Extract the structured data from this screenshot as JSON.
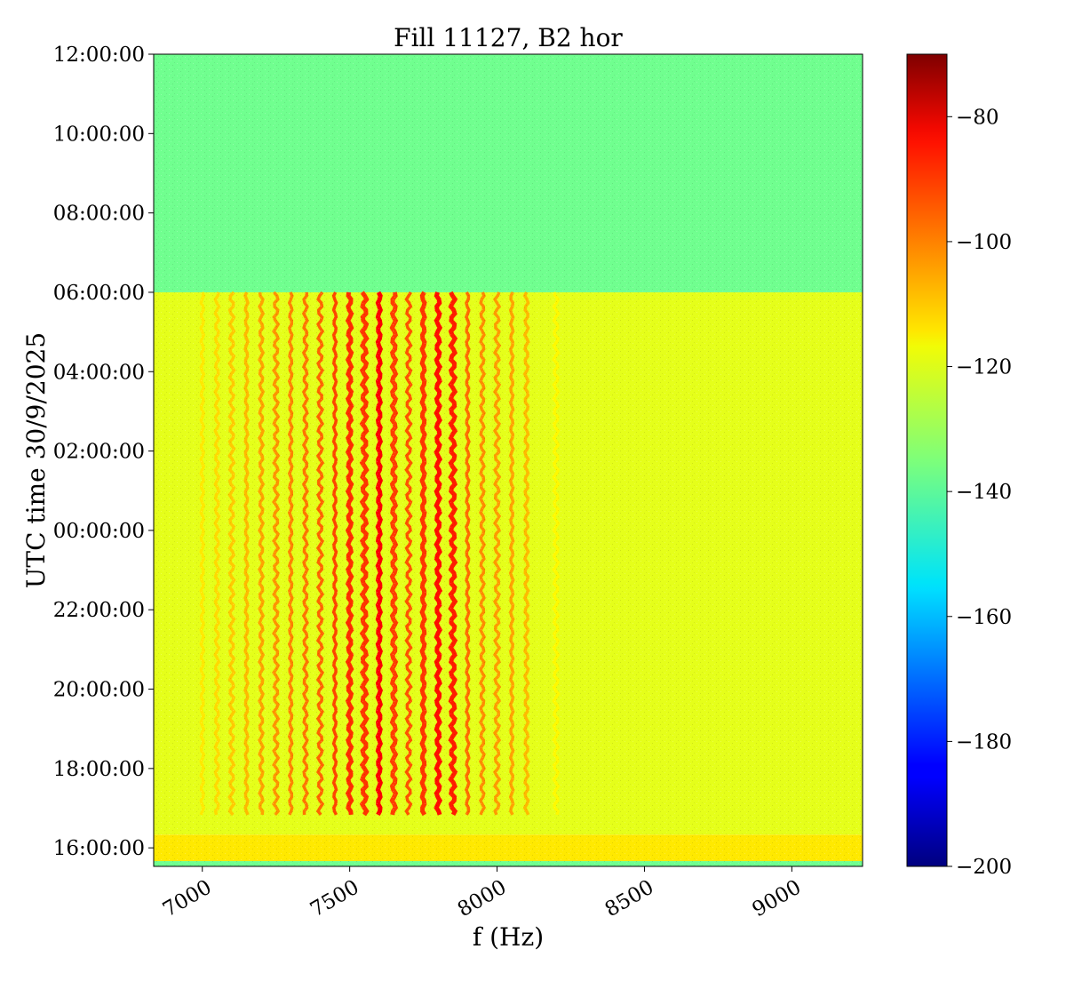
{
  "chart_data": {
    "type": "heatmap",
    "title": "Fill 11127, B2 hor",
    "xlabel": "f (Hz)",
    "ylabel": "UTC time 30/9/2025",
    "xlim": [
      6835,
      9240
    ],
    "x_ticks": [
      {
        "value": 7000,
        "label": "7000"
      },
      {
        "value": 7500,
        "label": "7500"
      },
      {
        "value": 8000,
        "label": "8000"
      },
      {
        "value": 8500,
        "label": "8500"
      },
      {
        "value": 9000,
        "label": "9000"
      }
    ],
    "ylim": [
      "2025-09-29T15:32:00",
      "2025-09-30T12:00:00"
    ],
    "y_ticks": [
      {
        "value": "2025-09-29T16:00:00",
        "label": "16:00:00"
      },
      {
        "value": "2025-09-29T18:00:00",
        "label": "18:00:00"
      },
      {
        "value": "2025-09-29T20:00:00",
        "label": "20:00:00"
      },
      {
        "value": "2025-09-29T22:00:00",
        "label": "22:00:00"
      },
      {
        "value": "2025-09-30T00:00:00",
        "label": "00:00:00"
      },
      {
        "value": "2025-09-30T02:00:00",
        "label": "02:00:00"
      },
      {
        "value": "2025-09-30T04:00:00",
        "label": "04:00:00"
      },
      {
        "value": "2025-09-30T06:00:00",
        "label": "06:00:00"
      },
      {
        "value": "2025-09-30T08:00:00",
        "label": "08:00:00"
      },
      {
        "value": "2025-09-30T10:00:00",
        "label": "10:00:00"
      },
      {
        "value": "2025-09-30T12:00:00",
        "label": "12:00:00"
      }
    ],
    "colorbar": {
      "colormap": "jet",
      "range": [
        -200,
        -70
      ],
      "ticks": [
        {
          "value": -200,
          "label": "−200"
        },
        {
          "value": -180,
          "label": "−180"
        },
        {
          "value": -160,
          "label": "−160"
        },
        {
          "value": -140,
          "label": "−140"
        },
        {
          "value": -120,
          "label": "−120"
        },
        {
          "value": -100,
          "label": "−100"
        },
        {
          "value": -80,
          "label": "−80"
        }
      ]
    },
    "regions": [
      {
        "t_start": "2025-09-29T15:32:00",
        "t_end": "2025-09-29T15:40:00",
        "level": -137
      },
      {
        "t_start": "2025-09-29T15:40:00",
        "t_end": "2025-09-29T16:20:00",
        "level": -116
      },
      {
        "t_start": "2025-09-29T16:20:00",
        "t_end": "2025-09-30T06:00:00",
        "level": -122
      },
      {
        "t_start": "2025-09-30T06:00:00",
        "t_end": "2025-09-30T12:00:00",
        "level": -137
      }
    ],
    "lines": [
      {
        "f": 7000,
        "level": -116,
        "t_start": "2025-09-29T16:45:00",
        "t_end": "2025-09-30T06:00:00"
      },
      {
        "f": 7050,
        "level": -114,
        "t_start": "2025-09-29T16:45:00",
        "t_end": "2025-09-30T06:00:00"
      },
      {
        "f": 7100,
        "level": -112,
        "t_start": "2025-09-29T16:45:00",
        "t_end": "2025-09-30T06:00:00"
      },
      {
        "f": 7150,
        "level": -110,
        "t_start": "2025-09-29T16:45:00",
        "t_end": "2025-09-30T06:00:00"
      },
      {
        "f": 7200,
        "level": -107,
        "t_start": "2025-09-29T16:45:00",
        "t_end": "2025-09-30T06:00:00"
      },
      {
        "f": 7250,
        "level": -105,
        "t_start": "2025-09-29T16:45:00",
        "t_end": "2025-09-30T06:00:00"
      },
      {
        "f": 7300,
        "level": -103,
        "t_start": "2025-09-29T16:45:00",
        "t_end": "2025-09-30T06:00:00"
      },
      {
        "f": 7350,
        "level": -101,
        "t_start": "2025-09-29T16:45:00",
        "t_end": "2025-09-30T06:00:00"
      },
      {
        "f": 7400,
        "level": -99,
        "t_start": "2025-09-29T16:45:00",
        "t_end": "2025-09-30T06:00:00"
      },
      {
        "f": 7450,
        "level": -95,
        "t_start": "2025-09-29T16:45:00",
        "t_end": "2025-09-30T06:00:00"
      },
      {
        "f": 7500,
        "level": -92,
        "t_start": "2025-09-29T16:45:00",
        "t_end": "2025-09-30T06:00:00"
      },
      {
        "f": 7550,
        "level": -93,
        "t_start": "2025-09-29T16:45:00",
        "t_end": "2025-09-30T06:00:00"
      },
      {
        "f": 7600,
        "level": -86,
        "t_start": "2025-09-29T16:45:00",
        "t_end": "2025-09-30T06:00:00"
      },
      {
        "f": 7650,
        "level": -94,
        "t_start": "2025-09-29T16:45:00",
        "t_end": "2025-09-30T06:00:00"
      },
      {
        "f": 7700,
        "level": -97,
        "t_start": "2025-09-29T16:45:00",
        "t_end": "2025-09-30T06:00:00"
      },
      {
        "f": 7750,
        "level": -93,
        "t_start": "2025-09-29T16:45:00",
        "t_end": "2025-09-30T06:00:00"
      },
      {
        "f": 7800,
        "level": -88,
        "t_start": "2025-09-29T16:45:00",
        "t_end": "2025-09-30T06:00:00"
      },
      {
        "f": 7850,
        "level": -90,
        "t_start": "2025-09-29T16:45:00",
        "t_end": "2025-09-30T06:00:00"
      },
      {
        "f": 7900,
        "level": -100,
        "t_start": "2025-09-29T16:45:00",
        "t_end": "2025-09-30T06:00:00"
      },
      {
        "f": 7950,
        "level": -104,
        "t_start": "2025-09-29T16:45:00",
        "t_end": "2025-09-30T06:00:00"
      },
      {
        "f": 8000,
        "level": -106,
        "t_start": "2025-09-29T16:45:00",
        "t_end": "2025-09-30T06:00:00"
      },
      {
        "f": 8050,
        "level": -107,
        "t_start": "2025-09-29T16:45:00",
        "t_end": "2025-09-30T06:00:00"
      },
      {
        "f": 8100,
        "level": -110,
        "t_start": "2025-09-29T16:45:00",
        "t_end": "2025-09-30T06:00:00"
      },
      {
        "f": 8200,
        "level": -118,
        "t_start": "2025-09-29T16:45:00",
        "t_end": "2025-09-30T06:00:00"
      }
    ]
  }
}
